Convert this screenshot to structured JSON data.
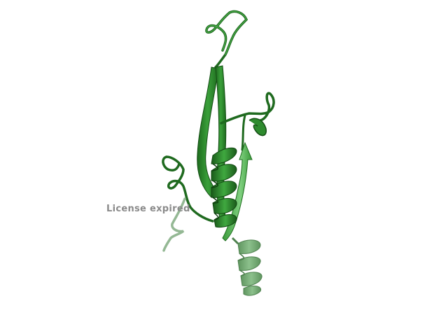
{
  "viewer": {
    "license_text": "License expired",
    "background_color": "#ffffff",
    "structure_color": "#2e8b2e",
    "structure_dark_color": "#1c5e1c",
    "structure_faded_color": "#7fb07f",
    "representation": "cartoon",
    "elements": [
      "beta-strand",
      "alpha-helix",
      "loop"
    ]
  }
}
